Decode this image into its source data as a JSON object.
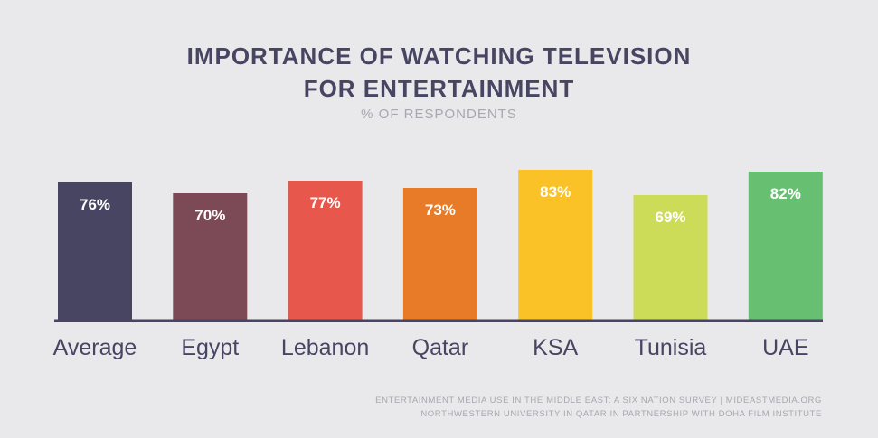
{
  "title_lines": [
    "IMPORTANCE OF WATCHING TELEVISION",
    "FOR ENTERTAINMENT"
  ],
  "subtitle": "% OF RESPONDENTS",
  "source_lines": [
    "ENTERTAINMENT MEDIA USE IN THE MIDDLE EAST: A SIX NATION SURVEY | MIDEASTMEDIA.ORG",
    "NORTHWESTERN UNIVERSITY IN QATAR IN PARTNERSHIP WITH DOHA FILM INSTITUTE"
  ],
  "colors": {
    "background": "#e9e8ea",
    "title": "#474562",
    "subtitle": "#a8a7b3",
    "axis": "#474562",
    "bars": [
      "#474562",
      "#7b4a56",
      "#e8574b",
      "#e77b27",
      "#fbc227",
      "#cddc58",
      "#67bf72"
    ]
  },
  "chart_data": {
    "type": "bar",
    "title": "IMPORTANCE OF WATCHING TELEVISION FOR ENTERTAINMENT",
    "subtitle": "% OF RESPONDENTS",
    "categories": [
      "Average",
      "Egypt",
      "Lebanon",
      "Qatar",
      "KSA",
      "Tunisia",
      "UAE"
    ],
    "values": [
      76,
      70,
      77,
      73,
      83,
      69,
      82
    ],
    "value_labels": [
      "76%",
      "70%",
      "77%",
      "73%",
      "83%",
      "69%",
      "82%"
    ],
    "unit": "%",
    "ylim": [
      0,
      100
    ],
    "grid": false,
    "legend": "none",
    "xlabel": "",
    "ylabel": ""
  }
}
